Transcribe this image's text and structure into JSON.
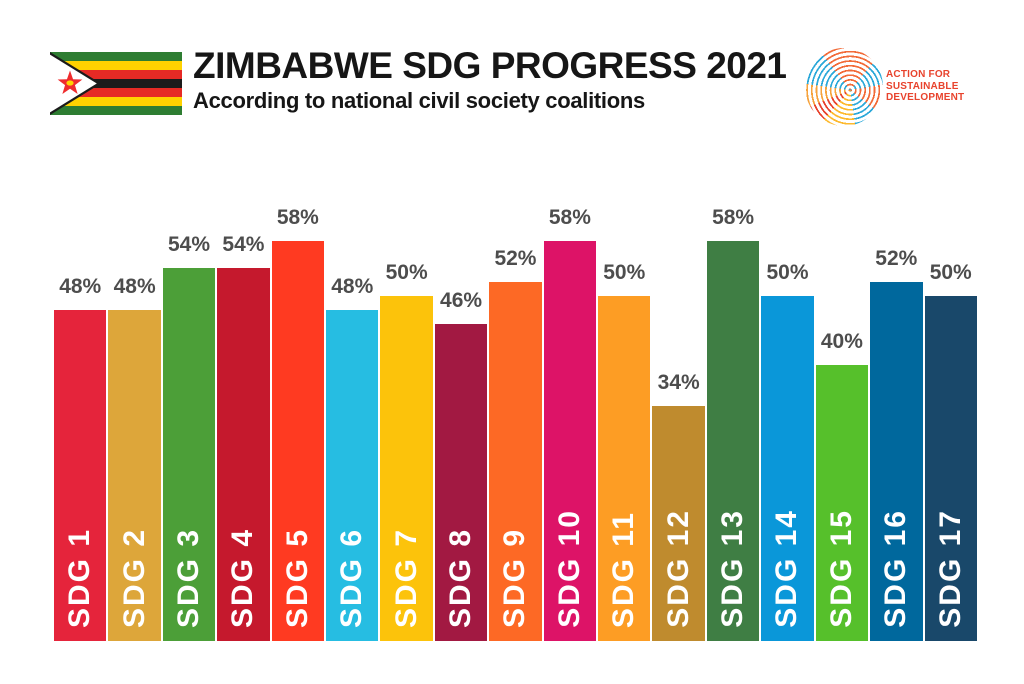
{
  "header": {
    "title": "ZIMBABWE SDG PROGRESS 2021",
    "subtitle": "According to national civil society coalitions",
    "flag": "zimbabwe-flag",
    "logo": {
      "line1": "ACTION FOR SUSTAINABLE",
      "line2": "DEVELOPMENT",
      "text_color": "#E8432D"
    }
  },
  "colors": {
    "background": "#FFFFFF",
    "title_text": "#161616",
    "value_label_text": "#4D4D4D",
    "bar_label_text": "#FFFFFF"
  },
  "chart_data": {
    "type": "bar",
    "orientation": "vertical",
    "title": "ZIMBABWE SDG PROGRESS 2021",
    "subtitle": "According to national civil society coalitions",
    "categories": [
      "SDG 1",
      "SDG 2",
      "SDG 3",
      "SDG 4",
      "SDG 5",
      "SDG 6",
      "SDG 7",
      "SDG 8",
      "SDG 9",
      "SDG 10",
      "SDG 11",
      "SDG 12",
      "SDG 13",
      "SDG 14",
      "SDG 15",
      "SDG 16",
      "SDG 17"
    ],
    "values": [
      48,
      48,
      54,
      54,
      58,
      48,
      50,
      46,
      52,
      58,
      50,
      34,
      58,
      50,
      40,
      52,
      50
    ],
    "value_labels": [
      "48%",
      "48%",
      "54%",
      "54%",
      "58%",
      "48%",
      "50%",
      "46%",
      "52%",
      "58%",
      "50%",
      "34%",
      "58%",
      "50%",
      "40%",
      "52%",
      "50%"
    ],
    "bar_colors": [
      "#E5243B",
      "#DDA63A",
      "#4C9F38",
      "#C5192D",
      "#FF3A21",
      "#26BDE2",
      "#FCC30B",
      "#A21942",
      "#FD6925",
      "#DD1367",
      "#FD9D24",
      "#BF8B2E",
      "#3F7E44",
      "#0A97D9",
      "#56C02B",
      "#00689D",
      "#19486A"
    ],
    "xlabel": "",
    "ylabel": "",
    "ylim": [
      0,
      100
    ],
    "grid": false,
    "legend": "none",
    "value_labels_shown": true
  }
}
